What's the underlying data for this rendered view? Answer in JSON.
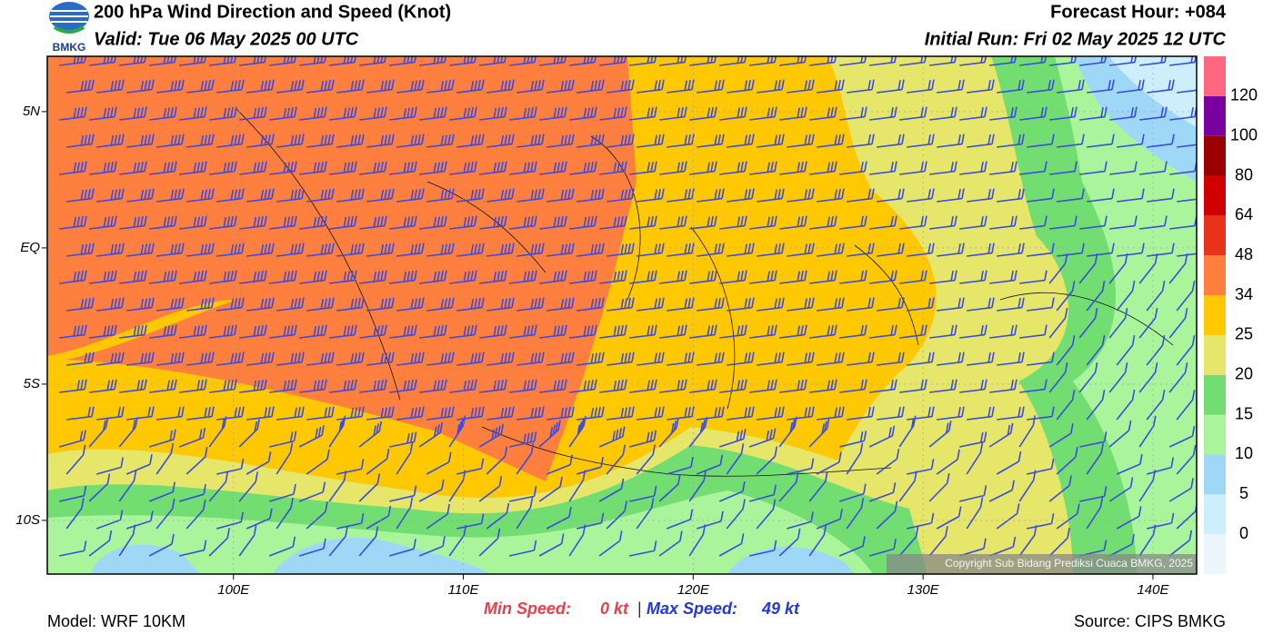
{
  "header": {
    "title": "200 hPa Wind Direction and Speed (Knot)",
    "valid": "Valid: Tue 06 May 2025 00 UTC",
    "forecast_hour": "Forecast Hour: +084",
    "initial_run": "Initial Run: Fri 02 May 2025 12 UTC",
    "logo_text": "BMKG"
  },
  "map": {
    "lon_range": [
      91.9,
      141.9
    ],
    "lat_range": [
      7.03,
      -11.97
    ],
    "lon_ticks": [
      {
        "value": 100,
        "label": "100E"
      },
      {
        "value": 110,
        "label": "110E"
      },
      {
        "value": 120,
        "label": "120E"
      },
      {
        "value": 130,
        "label": "130E"
      },
      {
        "value": 140,
        "label": "140E"
      }
    ],
    "lat_ticks": [
      {
        "value": 5,
        "label": "5N"
      },
      {
        "value": 0,
        "label": "EQ"
      },
      {
        "value": -5,
        "label": "5S"
      },
      {
        "value": -10,
        "label": "10S"
      }
    ],
    "copyright": "Copyright Sub Bidang Prediksi Cuaca BMKG, 2025"
  },
  "colorbar": {
    "levels": [
      0,
      5,
      10,
      15,
      20,
      25,
      34,
      48,
      64,
      80,
      100,
      120
    ],
    "colors": [
      "#eef6fd",
      "#cdeefb",
      "#9fd8f6",
      "#aaf59b",
      "#72de72",
      "#e6e66a",
      "#ffc800",
      "#ff7f3f",
      "#e8331a",
      "#d10000",
      "#9a0000",
      "#7a00a0",
      "#ff6680"
    ]
  },
  "footer": {
    "min_label": "Min Speed:",
    "min_value": "0 kt",
    "separator": "|",
    "max_label": "Max Speed:",
    "max_value": "49 kt",
    "model": "Model: WRF 10KM",
    "source": "Source: CIPS BMKG"
  }
}
